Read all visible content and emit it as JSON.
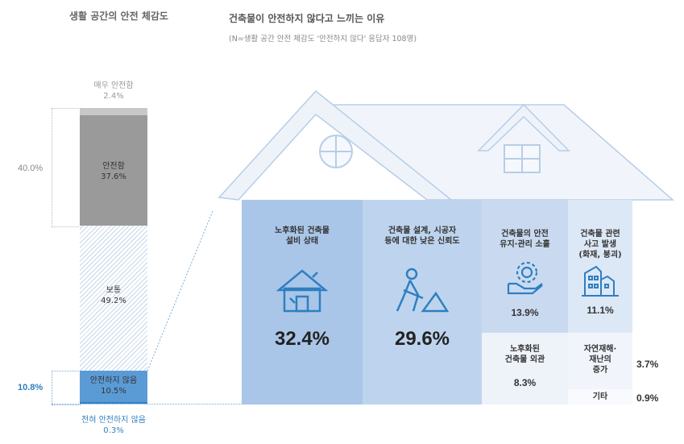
{
  "left": {
    "title": "생활 공간의 안전 체감도",
    "bracket_safe": "40.0%",
    "bracket_unsafe": "10.8%"
  },
  "right": {
    "title": "건축물이 안전하지 않다고 느끼는 이유",
    "subtitle": "(N=생활 공간 안전 체감도 '안전하지 않다' 응답자 108명)"
  },
  "chart_data": [
    {
      "type": "bar",
      "stacked": true,
      "title": "생활 공간의 안전 체감도",
      "categories": [
        "매우 안전함",
        "안전함",
        "보통",
        "안전하지 않음",
        "전혀 안전하지 않음"
      ],
      "values": [
        2.4,
        37.6,
        49.2,
        10.5,
        0.3
      ],
      "labels": [
        "2.4%",
        "37.6%",
        "49.2%",
        "10.5%",
        "0.3%"
      ],
      "colors": [
        "#c8c8c8",
        "#9a9a9a",
        "hatched",
        "#5b9bd5",
        "#2f7fc1"
      ]
    },
    {
      "type": "table",
      "title": "건축물이 안전하지 않다고 느끼는 이유",
      "categories": [
        "노후화된 건축물 설비 상태",
        "건축물 설계, 시공자 등에 대한 낮은 신뢰도",
        "건축물의 안전 유지·관리 소홀",
        "건축물 관련 사고 발생 (화재, 붕괴)",
        "노후화된 건축물 외관",
        "자연재해·재난의 증가",
        "기타"
      ],
      "values": [
        32.4,
        29.6,
        13.9,
        11.1,
        8.3,
        3.7,
        0.9
      ],
      "labels": [
        "32.4%",
        "29.6%",
        "13.9%",
        "11.1%",
        "8.3%",
        "3.7%",
        "0.9%"
      ]
    }
  ],
  "cells": [
    {
      "l1": "노후화된 건축물",
      "l2": "설비 상태",
      "icon": "damaged-house-icon"
    },
    {
      "l1": "건축물 설계, 시공자",
      "l2": "등에 대한 낮은 신뢰도",
      "icon": "construction-worker-icon"
    },
    {
      "l1": "건축물의 안전",
      "l2": "유지·관리 소홀",
      "icon": "gear-hand-icon"
    },
    {
      "l1": "건축물 관련",
      "l2": "사고 발생",
      "l3": "(화재, 붕괴)",
      "icon": "collapsed-building-icon"
    },
    {
      "l1": "노후화된",
      "l2": "건축물 외관"
    },
    {
      "l1": "자연재해·",
      "l2": "재난의",
      "l3": "증가"
    },
    {
      "l1": "기타"
    }
  ],
  "colors": {
    "cell1": "#a9c6e8",
    "cell2": "#bed4ee",
    "cell3": "#c9daf0",
    "cell4": "#dde8f6",
    "cell5": "#eef3fa",
    "accent": "#2f7fc1"
  }
}
